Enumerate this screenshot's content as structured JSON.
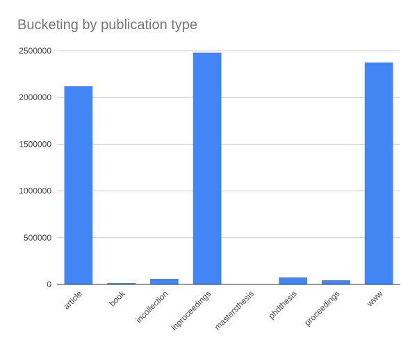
{
  "chart_data": {
    "type": "bar",
    "title": "Bucketing by publication type",
    "xlabel": "",
    "ylabel": "",
    "categories": [
      "article",
      "book",
      "incollection",
      "inproceedings",
      "mastersthesis",
      "phdthesis",
      "proceedings",
      "www"
    ],
    "series": [
      {
        "values": [
          2120000,
          15000,
          60000,
          2480000,
          0,
          75000,
          45000,
          2375000
        ],
        "color": "#4285f4"
      }
    ],
    "ylim": [
      0,
      2500000
    ],
    "yticks": [
      0,
      500000,
      1000000,
      1500000,
      2000000,
      2500000
    ],
    "ytick_labels": [
      "0",
      "500000",
      "1000000",
      "1500000",
      "2000000",
      "2500000"
    ],
    "grid": true,
    "legend": "none",
    "colors": {
      "bar": "#4285f4",
      "grid": "#cccccc",
      "axis": "#333333",
      "title": "#757575",
      "tick_text": "#444444"
    }
  }
}
